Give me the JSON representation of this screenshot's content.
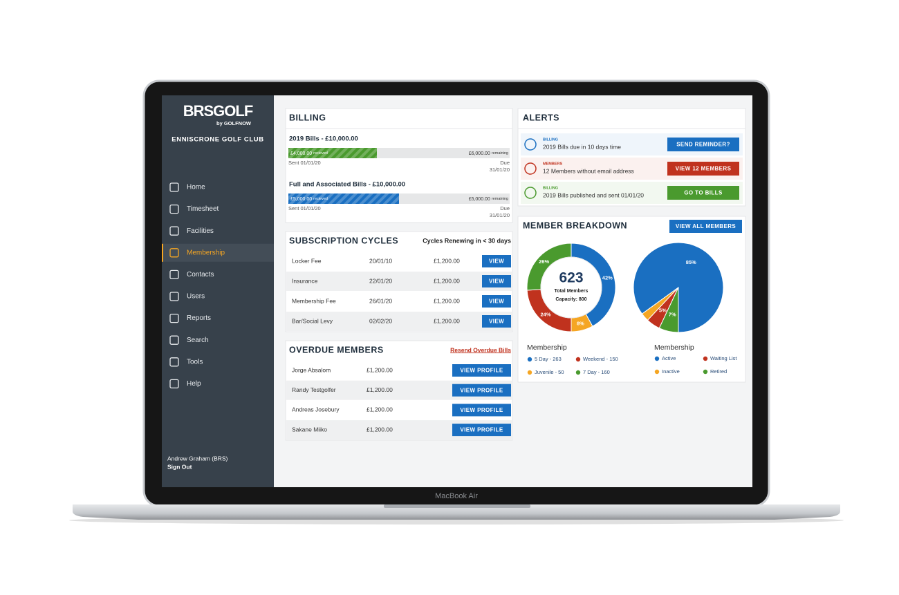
{
  "device": {
    "label": "MacBook Air"
  },
  "sidebar": {
    "logo": "BRSGOLF",
    "logo_by": "by GOLFNOW",
    "club": "ENNISCRONE GOLF CLUB",
    "nav": [
      {
        "label": "Home"
      },
      {
        "label": "Timesheet"
      },
      {
        "label": "Facilities"
      },
      {
        "label": "Membership",
        "active": true
      },
      {
        "label": "Contacts"
      },
      {
        "label": "Users"
      },
      {
        "label": "Reports"
      },
      {
        "label": "Search"
      },
      {
        "label": "Tools"
      },
      {
        "label": "Help"
      }
    ],
    "user": "Andrew Graham (BRS)",
    "sign_out": "Sign Out"
  },
  "billing": {
    "title": "BILLING",
    "items": [
      {
        "title": "2019 Bills - £10,000.00",
        "received": 4000,
        "received_label": "£4,000.00",
        "received_word": "recieved",
        "remaining": 6000,
        "remaining_label": "£6,000.00",
        "remaining_word": "remaining",
        "color": "#4a9a2e",
        "sent": "Sent  01/01/20",
        "due": "Due",
        "due_date": "31/01/20"
      },
      {
        "title": "Full and Associated Bills - £10,000.00",
        "received": 5000,
        "received_label": "£5,000.00",
        "received_word": "recieved",
        "remaining": 5000,
        "remaining_label": "£5,000.00",
        "remaining_word": "remaining",
        "color": "#1a6fc1",
        "sent": "Sent  01/01/20",
        "due": "Due",
        "due_date": "31/01/20"
      }
    ]
  },
  "subscriptions": {
    "title": "SUBSCRIPTION CYCLES",
    "subtitle": "Cycles Renewing in < 30 days",
    "rows": [
      [
        "Locker Fee",
        "20/01/10",
        "£1,200.00",
        "VIEW"
      ],
      [
        "Insurance",
        "22/01/20",
        "£1,200.00",
        "VIEW"
      ],
      [
        "Membership Fee",
        "26/01/20",
        "£1,200.00",
        "VIEW"
      ],
      [
        "Bar/Social Levy",
        "02/02/20",
        "£1,200.00",
        "VIEW"
      ]
    ]
  },
  "overdue": {
    "title": "OVERDUE MEMBERS",
    "action": "Resend Overdue Bills",
    "rows": [
      [
        "Jorge Absalom",
        "£1,200.00",
        "VIEW PROFILE"
      ],
      [
        "Randy Testgolfer",
        "£1,200.00",
        "VIEW PROFILE"
      ],
      [
        "Andreas Josebury",
        "£1,200.00",
        "VIEW PROFILE"
      ],
      [
        "Sakane Miiko",
        "£1,200.00",
        "VIEW PROFILE"
      ]
    ]
  },
  "alerts": {
    "title": "ALERTS",
    "items": [
      {
        "tag": "BILLING",
        "message": "2019 Bills due in 10 days time",
        "button": "SEND REMINDER?",
        "color": "#1a6fc1"
      },
      {
        "tag": "MEMBERS",
        "message": "12 Members without email address",
        "button": "VIEW 12 MEMBERS",
        "color": "#c0321e"
      },
      {
        "tag": "BILLING",
        "message": "2019 Bills published and sent 01/01/20",
        "button": "GO TO BILLS",
        "color": "#4a9a2e"
      }
    ]
  },
  "member_breakdown": {
    "title": "MEMBER BREAKDOWN",
    "button": "VIEW ALL MEMBERS",
    "total": "623",
    "total_label": "Total Members",
    "capacity": "Capacity: 800"
  },
  "chart_data": [
    {
      "type": "donut",
      "title": "Membership",
      "categories": [
        "5 Day - 263",
        "Juvenile - 50",
        "Weekend - 150",
        "7 Day - 160"
      ],
      "values": [
        42,
        8,
        24,
        26
      ],
      "value_labels": [
        "42%",
        "8%",
        "24%",
        "26%"
      ],
      "colors": [
        "#1a6fc1",
        "#f5a623",
        "#c0321e",
        "#4a9a2e"
      ]
    },
    {
      "type": "pie",
      "title": "Membership",
      "categories": [
        "Active",
        "Inactive",
        "Waiting List",
        "Retired"
      ],
      "values": [
        85,
        3,
        5,
        7
      ],
      "value_labels": [
        "85%",
        null,
        "5%",
        "7%"
      ],
      "colors": [
        "#1a6fc1",
        "#f5a623",
        "#c0321e",
        "#4a9a2e"
      ]
    }
  ]
}
